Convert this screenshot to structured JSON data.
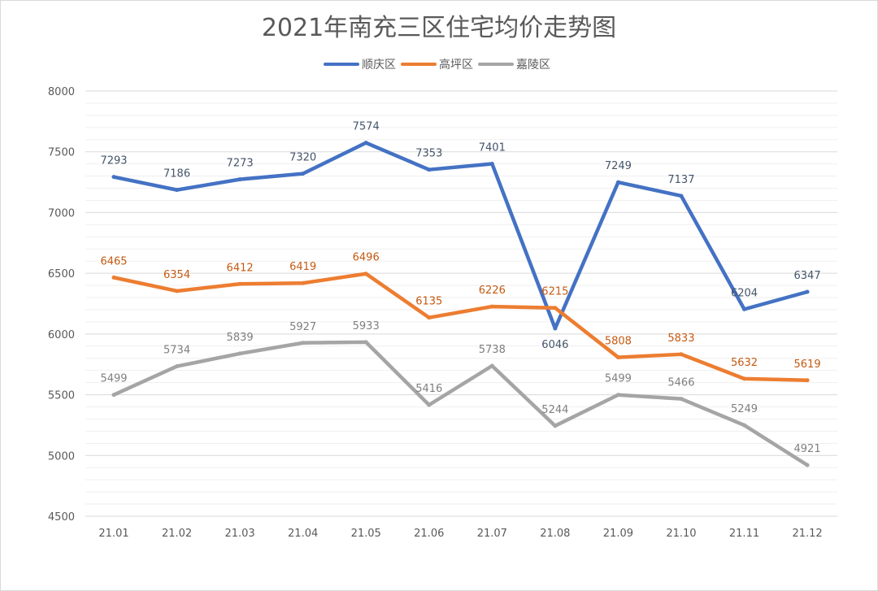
{
  "chart_data": {
    "type": "line",
    "title": "2021年南充三区住宅均价走势图",
    "xlabel": "",
    "ylabel": "",
    "categories": [
      "21.01",
      "21.02",
      "21.03",
      "21.04",
      "21.05",
      "21.06",
      "21.07",
      "21.08",
      "21.09",
      "21.10",
      "21.11",
      "21.12"
    ],
    "ylim": [
      4500,
      8000
    ],
    "yticks": [
      4500,
      5000,
      5500,
      6000,
      6500,
      7000,
      7500,
      8000
    ],
    "grid": true,
    "legend_placement": "top",
    "series": [
      {
        "name": "顺庆区",
        "color": "#4472c4",
        "label_color": "#44546a",
        "values": [
          7293,
          7186,
          7273,
          7320,
          7574,
          7353,
          7401,
          6046,
          7249,
          7137,
          6204,
          6347
        ]
      },
      {
        "name": "高坪区",
        "color": "#ed7d31",
        "label_color": "#c55a11",
        "values": [
          6465,
          6354,
          6412,
          6419,
          6496,
          6135,
          6226,
          6215,
          5808,
          5833,
          5632,
          5619
        ]
      },
      {
        "name": "嘉陵区",
        "color": "#a5a5a5",
        "label_color": "#7f7f7f",
        "values": [
          5499,
          5734,
          5839,
          5927,
          5933,
          5416,
          5738,
          5244,
          5499,
          5466,
          5249,
          4921
        ]
      }
    ]
  }
}
